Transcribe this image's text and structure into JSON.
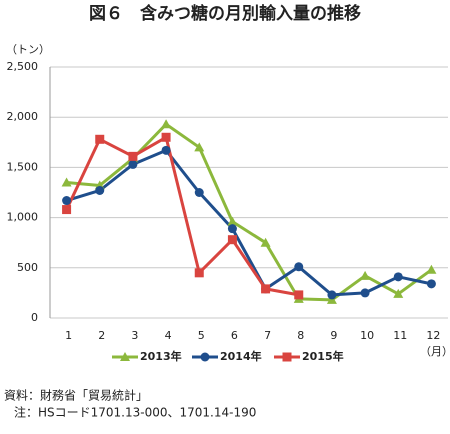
{
  "chart_data": {
    "type": "line",
    "title": "図６　含みつ糖の月別輸入量の推移",
    "y_unit": "（トン）",
    "x_unit": "（月）",
    "categories": [
      "1",
      "2",
      "3",
      "4",
      "5",
      "6",
      "7",
      "8",
      "9",
      "10",
      "11",
      "12"
    ],
    "series": [
      {
        "name": "2013年",
        "color": "#8cb83c",
        "marker": "triangle",
        "values": [
          1350,
          1320,
          1590,
          1930,
          1700,
          960,
          750,
          190,
          180,
          420,
          240,
          480
        ]
      },
      {
        "name": "2014年",
        "color": "#1f4e8c",
        "marker": "circle",
        "values": [
          1170,
          1270,
          1530,
          1670,
          1250,
          890,
          290,
          510,
          230,
          250,
          410,
          340
        ]
      },
      {
        "name": "2015年",
        "color": "#d9443f",
        "marker": "square",
        "values": [
          1080,
          1780,
          1610,
          1800,
          450,
          780,
          290,
          230,
          null,
          null,
          null,
          null
        ]
      }
    ],
    "ylim": [
      0,
      2500
    ],
    "yticks": [
      0,
      500,
      {
        "value": 1000,
        "label": "1,000"
      },
      {
        "value": 1500,
        "label": "1,500"
      },
      {
        "value": 2000,
        "label": "2,000"
      },
      {
        "value": 2500,
        "label": "2,500"
      }
    ],
    "grid": true,
    "legend": "bottom",
    "notes": [
      "資料：財務省「貿易統計」",
      "注：HSコード1701.13-000、1701.14-190"
    ]
  }
}
